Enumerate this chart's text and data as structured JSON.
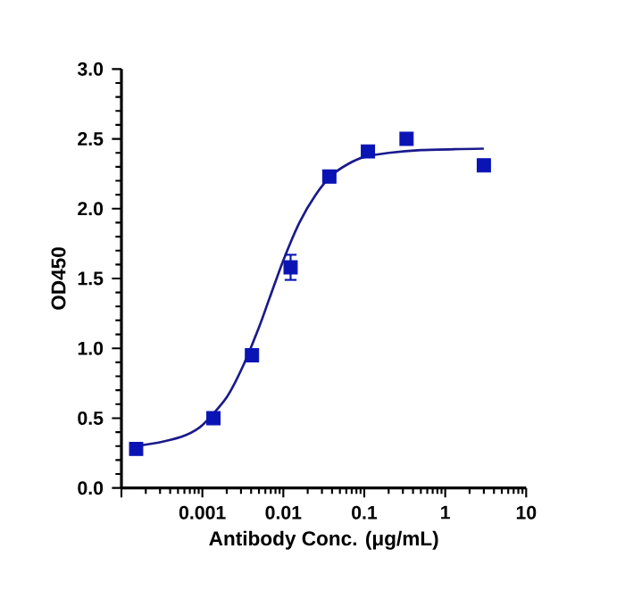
{
  "chart_data": {
    "type": "scatter",
    "xlabel": "Antibody Conc. (μg/mL)",
    "ylabel": "OD450",
    "log": "x",
    "grid": false,
    "marker": "square",
    "xlim": [
      0.0001,
      10
    ],
    "ylim": [
      0,
      3.0
    ],
    "xticks": [
      {
        "value": 0.0001,
        "label": null
      },
      {
        "value": 0.001,
        "label": "0.001"
      },
      {
        "value": 0.01,
        "label": "0.01"
      },
      {
        "value": 0.1,
        "label": "0.1"
      },
      {
        "value": 1,
        "label": "1"
      },
      {
        "value": 10,
        "label": "10"
      }
    ],
    "yticks": [
      {
        "value": 0,
        "label": "0.0"
      },
      {
        "value": 0.5,
        "label": "0.5"
      },
      {
        "value": 1,
        "label": "1.0"
      },
      {
        "value": 1.5,
        "label": "1.5"
      },
      {
        "value": 2,
        "label": "2.0"
      },
      {
        "value": 2.5,
        "label": "2.5"
      },
      {
        "value": 3,
        "label": "3.0"
      }
    ],
    "series": [
      {
        "color": "#0a14b4",
        "x": [
          0.000152,
          0.00137,
          0.0041,
          0.0123,
          0.037,
          0.111,
          0.333,
          3
        ],
        "values": [
          0.28,
          0.5,
          0.95,
          1.58,
          2.23,
          2.41,
          2.5,
          2.31
        ],
        "errors": [
          0.03,
          null,
          null,
          0.09,
          null,
          0.03,
          null,
          null
        ]
      },
      {
        "type": "line",
        "color": "#1a1a8c",
        "marker": "none",
        "x": [
          0.000152,
          0.000316,
          0.000631,
          0.001,
          0.002,
          0.00316,
          0.005,
          0.00676,
          0.01,
          0.0158,
          0.0251,
          0.0398,
          0.0631,
          0.1,
          0.2,
          0.5,
          3
        ],
        "values": [
          0.3,
          0.33,
          0.38,
          0.45,
          0.65,
          0.87,
          1.15,
          1.36,
          1.63,
          1.9,
          2.1,
          2.24,
          2.32,
          2.37,
          2.4,
          2.42,
          2.43
        ]
      }
    ]
  }
}
